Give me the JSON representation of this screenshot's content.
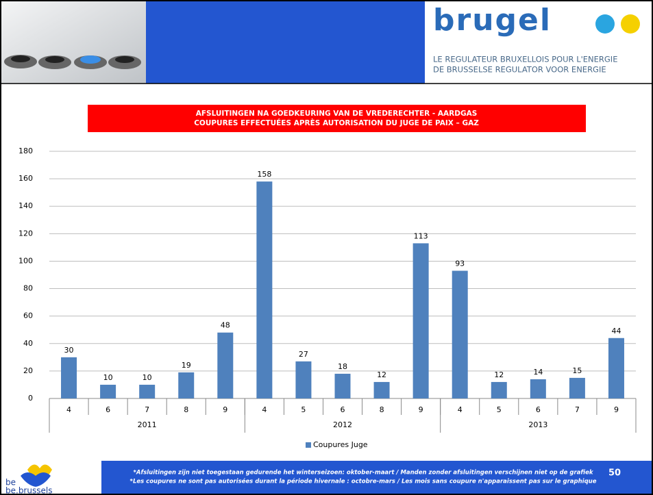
{
  "header": {
    "logo": "brugel",
    "tagline": [
      "LE REGULATEUR BRUXELLOIS POUR L'ENERGIE",
      "DE BRUSSELSE REGULATOR VOOR ENERGIE"
    ]
  },
  "chart_data": {
    "type": "bar",
    "title": [
      "AFSLUITINGEN NA GOEDKEURING VAN DE VREDERECHTER - AARDGAS",
      "COUPURES EFFECTUÉES APRÈS AUTORISATION DU JUGE DE PAIX – GAZ"
    ],
    "groups": [
      {
        "label": "2011",
        "categories": [
          "4",
          "6",
          "7",
          "8",
          "9"
        ]
      },
      {
        "label": "2012",
        "categories": [
          "4",
          "5",
          "6",
          "8",
          "9"
        ]
      },
      {
        "label": "2013",
        "categories": [
          "4",
          "5",
          "6",
          "7",
          "9"
        ]
      }
    ],
    "series": [
      {
        "name": "Coupures Juge",
        "color": "#4f81bd",
        "values": [
          30,
          10,
          10,
          19,
          48,
          158,
          27,
          18,
          12,
          113,
          93,
          12,
          14,
          15,
          44
        ]
      }
    ],
    "ylim": [
      0,
      180
    ],
    "yticks": [
      0,
      20,
      40,
      60,
      80,
      100,
      120,
      140,
      160,
      180
    ],
    "grid": true,
    "legend": "bottom"
  },
  "footer": {
    "notes": [
      "*Afsluitingen zijn niet  toegestaan gedurende het winterseizoen: oktober-maart / Manden zonder afsluitingen verschijnen niet op de grafiek",
      "*Les coupures ne sont pas autorisées durant la période hivernale : octobre-mars / Les mois sans coupure n'apparaissent pas sur le graphique"
    ],
    "page": "50",
    "logo": "be.brussels",
    "logo_small": "be"
  }
}
